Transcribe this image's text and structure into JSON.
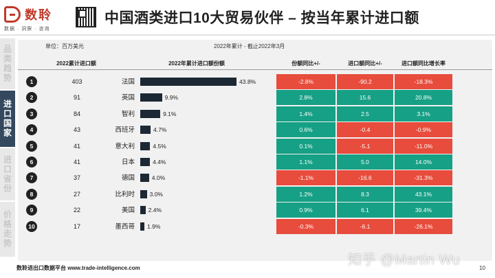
{
  "header": {
    "brand": "数聆",
    "tagline": "数据 · 洞察 · 咨询",
    "title": "中国酒类进口10大贸易伙伴 – 按当年累计进口额"
  },
  "sidebar": {
    "items": [
      {
        "label": "品类趋势",
        "active": false
      },
      {
        "label": "进口国家",
        "active": true
      },
      {
        "label": "进口省份",
        "active": false
      },
      {
        "label": "价格走势",
        "active": false
      }
    ]
  },
  "table": {
    "unit": "单位：百万美元",
    "period": "2022年累计 - 截止2022年3月",
    "headers": {
      "imports": "2022累计进口额",
      "share": "2022年累计进口额份额",
      "share_yoy": "份额同比+/-",
      "value_yoy": "进口额同比+/-",
      "growth_yoy": "进口额同比增长率"
    },
    "rows": [
      {
        "rank": "1",
        "imports": "403",
        "country": "法国",
        "share": "43.8%",
        "share_value": 43.8,
        "share_yoy": "-2.8%",
        "value_yoy": "-90.2",
        "growth_yoy": "-18.3%"
      },
      {
        "rank": "2",
        "imports": "91",
        "country": "英国",
        "share": "9.9%",
        "share_value": 9.9,
        "share_yoy": "2.8%",
        "value_yoy": "15.6",
        "growth_yoy": "20.8%"
      },
      {
        "rank": "3",
        "imports": "84",
        "country": "智利",
        "share": "9.1%",
        "share_value": 9.1,
        "share_yoy": "1.4%",
        "value_yoy": "2.5",
        "growth_yoy": "3.1%"
      },
      {
        "rank": "4",
        "imports": "43",
        "country": "西班牙",
        "share": "4.7%",
        "share_value": 4.7,
        "share_yoy": "0.6%",
        "value_yoy": "-0.4",
        "growth_yoy": "-0.9%"
      },
      {
        "rank": "5",
        "imports": "41",
        "country": "意大利",
        "share": "4.5%",
        "share_value": 4.5,
        "share_yoy": "0.1%",
        "value_yoy": "-5.1",
        "growth_yoy": "-11.0%"
      },
      {
        "rank": "6",
        "imports": "41",
        "country": "日本",
        "share": "4.4%",
        "share_value": 4.4,
        "share_yoy": "1.1%",
        "value_yoy": "5.0",
        "growth_yoy": "14.0%"
      },
      {
        "rank": "7",
        "imports": "37",
        "country": "德国",
        "share": "4.0%",
        "share_value": 4.0,
        "share_yoy": "-1.1%",
        "value_yoy": "-16.6",
        "growth_yoy": "-31.3%"
      },
      {
        "rank": "8",
        "imports": "27",
        "country": "比利时",
        "share": "3.0%",
        "share_value": 3.0,
        "share_yoy": "1.2%",
        "value_yoy": "8.3",
        "growth_yoy": "43.1%"
      },
      {
        "rank": "9",
        "imports": "22",
        "country": "美国",
        "share": "2.4%",
        "share_value": 2.4,
        "share_yoy": "0.9%",
        "value_yoy": "6.1",
        "growth_yoy": "39.4%"
      },
      {
        "rank": "10",
        "imports": "17",
        "country": "墨西哥",
        "share": "1.9%",
        "share_value": 1.9,
        "share_yoy": "-0.3%",
        "value_yoy": "-6.1",
        "growth_yoy": "-26.1%"
      }
    ]
  },
  "footer": {
    "text": "数聆进出口数据平台 www.trade-intelligence.com",
    "watermark": "知乎 @Martin Wu",
    "page": "10"
  },
  "colors": {
    "positive": "#16a085",
    "negative": "#e74c3c",
    "bar": "#1c2833",
    "active_tab": "#34495e",
    "brand": "#c0392b"
  }
}
